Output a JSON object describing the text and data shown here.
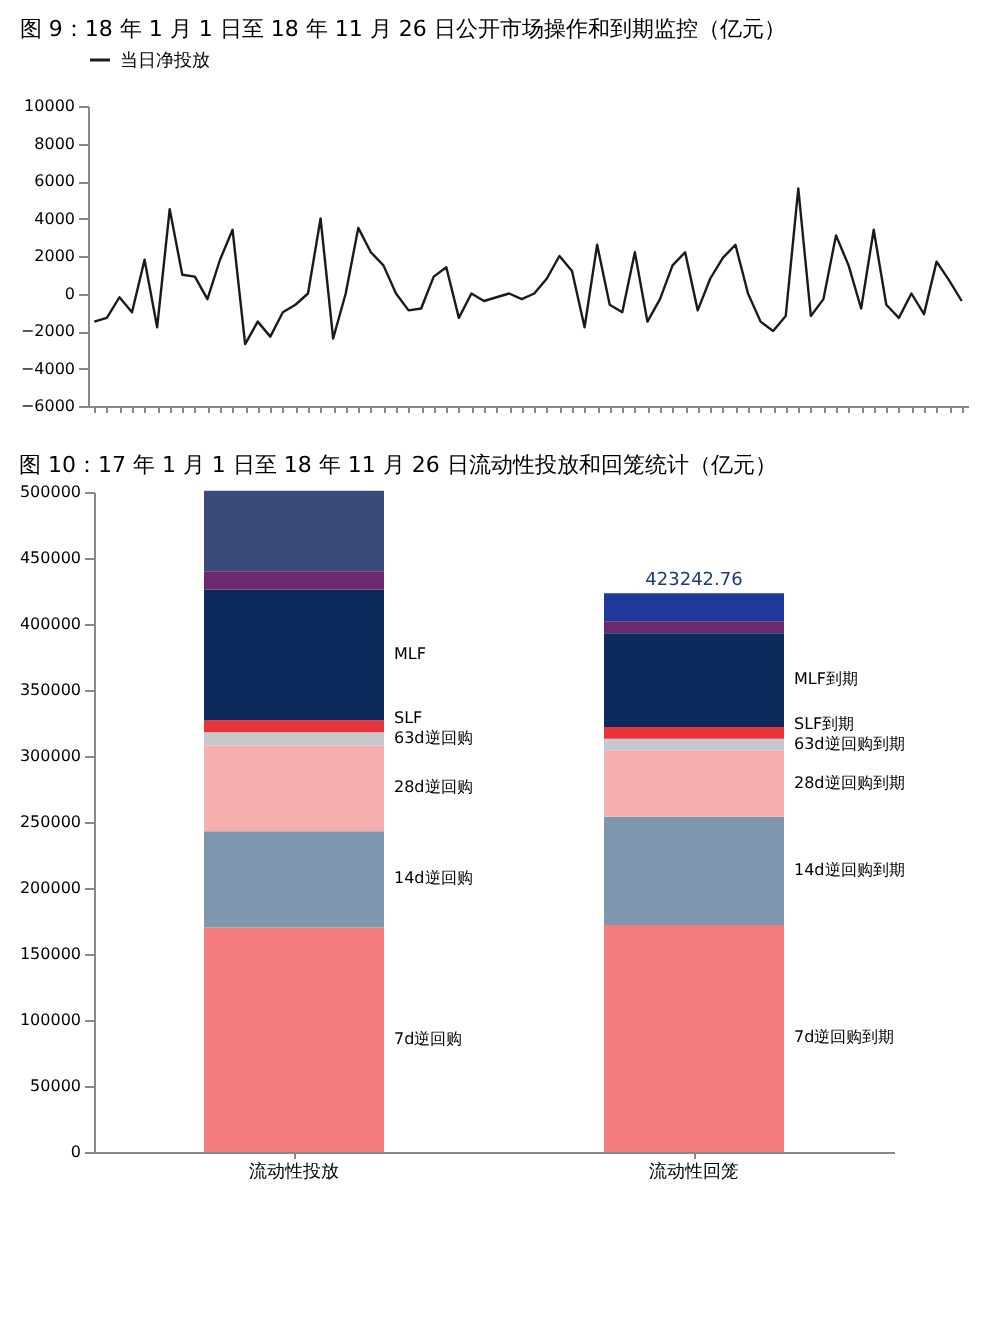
{
  "chart_data": [
    {
      "type": "line",
      "title": "图 9：18 年 1 月 1 日至 18 年 11 月 26 日公开市场操作和到期监控（亿元）",
      "legend": "top",
      "categories": [
        null,
        null,
        null,
        null,
        null,
        null,
        null,
        null,
        null,
        null,
        null,
        null,
        null,
        null,
        null,
        null,
        null,
        null,
        null,
        null,
        null,
        null,
        null,
        null,
        null,
        null,
        null,
        null,
        null,
        null,
        null,
        null,
        null,
        null,
        null,
        null,
        null,
        null,
        null,
        null,
        null,
        null,
        null,
        null,
        null,
        null,
        null,
        null,
        null,
        null,
        null,
        null,
        null,
        null,
        null,
        null,
        null,
        null,
        null,
        null,
        null,
        null,
        null,
        null,
        null,
        null,
        null,
        null,
        null,
        null
      ],
      "ylim": [
        -6000,
        10000
      ],
      "yticks": [
        -6000,
        -4000,
        -2000,
        0,
        2000,
        4000,
        6000,
        8000,
        10000
      ],
      "series": [
        {
          "name": "当日净投放",
          "color": "#1a1a1a",
          "values": [
            -1500,
            -1300,
            -200,
            -1000,
            1800,
            -1800,
            4500,
            1000,
            900,
            -300,
            1800,
            3400,
            -2700,
            -1500,
            -2300,
            -1000,
            -600,
            0,
            4000,
            -2400,
            0,
            3500,
            2200,
            1500,
            0,
            -900,
            -800,
            900,
            1400,
            -1300,
            0,
            -400,
            -200,
            0,
            -300,
            0,
            800,
            2000,
            1200,
            -1800,
            2600,
            -600,
            -1000,
            2200,
            -1500,
            -300,
            1500,
            2200,
            -900,
            800,
            1900,
            2600,
            0,
            -1500,
            -2000,
            -1200,
            5600,
            -1200,
            -300,
            3100,
            1500,
            -800,
            3400,
            -600,
            -1300,
            0,
            -1100,
            1700,
            700,
            -400
          ]
        }
      ]
    },
    {
      "type": "bar",
      "stacked": true,
      "title": "图 10：17 年 1 月 1 日至 18 年 11 月 26 日流动性投放和回笼统计（亿元）",
      "categories": [
        "流动性投放",
        "流动性回笼"
      ],
      "ylim": [
        0,
        500000
      ],
      "yticks": [
        0,
        50000,
        100000,
        150000,
        200000,
        250000,
        300000,
        350000,
        400000,
        450000,
        500000
      ],
      "totals": [
        null,
        "423242.76"
      ],
      "series": [
        {
          "name": "7d逆回购",
          "color": "#f47c7c",
          "values": [
            170000,
            null
          ]
        },
        {
          "name": "14d逆回购",
          "color": "#7f97ae",
          "values": [
            73000,
            null
          ]
        },
        {
          "name": "28d逆回购",
          "color": "#f6aeae",
          "values": [
            65000,
            null
          ]
        },
        {
          "name": "63d逆回购",
          "color": "#c8c8cc",
          "values": [
            10000,
            null
          ]
        },
        {
          "name": "SLF",
          "color": "#e8333a",
          "values": [
            9000,
            null
          ]
        },
        {
          "name": "MLF",
          "color": "#0d2a5c",
          "values": [
            99000,
            null
          ]
        },
        {
          "color": "#6b2a6e",
          "values": [
            14000,
            null
          ]
        },
        {
          "color": "#3a4a7a",
          "values": [
            61000,
            null
          ]
        },
        {
          "name": "7d逆回购到期",
          "color": "#f47c7c",
          "values": [
            null,
            172000
          ]
        },
        {
          "name": "14d逆回购到期",
          "color": "#7f97ae",
          "values": [
            null,
            82000
          ]
        },
        {
          "name": "28d逆回购到期",
          "color": "#f6aeae",
          "values": [
            null,
            50000
          ]
        },
        {
          "name": "63d逆回购到期",
          "color": "#c8c8cc",
          "values": [
            null,
            9000
          ]
        },
        {
          "name": "SLF到期",
          "color": "#e8333a",
          "values": [
            null,
            9000
          ]
        },
        {
          "name": "MLF到期",
          "color": "#0d2a5c",
          "values": [
            null,
            71000
          ]
        },
        {
          "color": "#6b2a6e",
          "values": [
            null,
            9000
          ]
        },
        {
          "color": "#1f3a9a",
          "values": [
            null,
            21242.76
          ]
        }
      ]
    }
  ]
}
